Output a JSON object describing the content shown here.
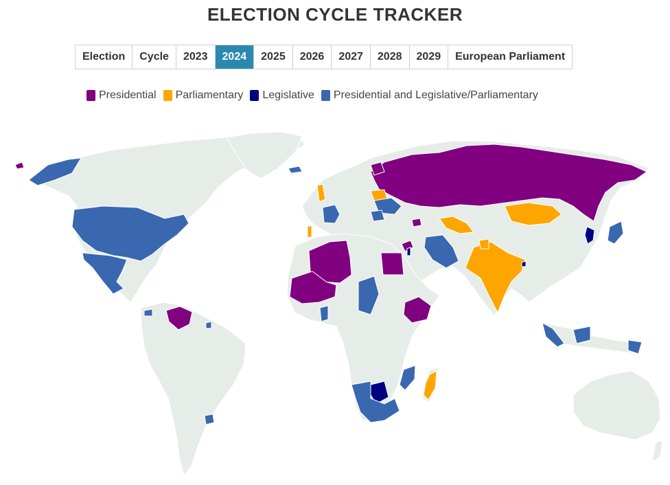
{
  "title": "ELECTION CYCLE TRACKER",
  "tabs": [
    "Election",
    "Cycle",
    "2023",
    "2024",
    "2025",
    "2026",
    "2027",
    "2028",
    "2029",
    "European Parliament"
  ],
  "active_tab": "2024",
  "legend": [
    {
      "label": "Presidential",
      "color": "#800080"
    },
    {
      "label": "Parliamentary",
      "color": "#ffa500"
    },
    {
      "label": "Legislative",
      "color": "#000080"
    },
    {
      "label": "Presidential and Legislative/Parliamentary",
      "color": "#3967b0"
    }
  ],
  "colors": {
    "land": "#e6ede9",
    "tab_active": "#2b89b0"
  }
}
